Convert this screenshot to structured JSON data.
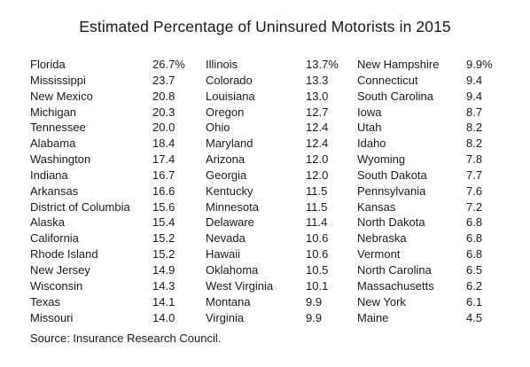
{
  "document": {
    "title": "Estimated Percentage  of Uninsured Motorists in 2015",
    "source": "Source: Insurance Research Council.",
    "columns": [
      {
        "rows": [
          {
            "state": "Florida",
            "pct": "26.7%"
          },
          {
            "state": "Mississippi",
            "pct": "23.7"
          },
          {
            "state": "New Mexico",
            "pct": "20.8"
          },
          {
            "state": "Michigan",
            "pct": "20.3"
          },
          {
            "state": "Tennessee",
            "pct": "20.0"
          },
          {
            "state": "Alabama",
            "pct": "18.4"
          },
          {
            "state": "Washington",
            "pct": "17.4"
          },
          {
            "state": "Indiana",
            "pct": "16.7"
          },
          {
            "state": "Arkansas",
            "pct": "16.6"
          },
          {
            "state": "District of Columbia",
            "pct": "15.6"
          },
          {
            "state": "Alaska",
            "pct": "15.4"
          },
          {
            "state": "California",
            "pct": "15.2"
          },
          {
            "state": "Rhode Island",
            "pct": "15.2"
          },
          {
            "state": "New Jersey",
            "pct": "14.9"
          },
          {
            "state": "Wisconsin",
            "pct": "14.3"
          },
          {
            "state": "Texas",
            "pct": "14.1"
          },
          {
            "state": "Missouri",
            "pct": "14.0"
          }
        ]
      },
      {
        "rows": [
          {
            "state": "Illinois",
            "pct": "13.7%"
          },
          {
            "state": "Colorado",
            "pct": "13.3"
          },
          {
            "state": "Louisiana",
            "pct": "13.0"
          },
          {
            "state": "Oregon",
            "pct": "12.7"
          },
          {
            "state": "Ohio",
            "pct": "12.4"
          },
          {
            "state": "Maryland",
            "pct": "12.4"
          },
          {
            "state": "Arizona",
            "pct": "12.0"
          },
          {
            "state": "Georgia",
            "pct": "12.0"
          },
          {
            "state": "Kentucky",
            "pct": "11.5"
          },
          {
            "state": "Minnesota",
            "pct": "11.5"
          },
          {
            "state": "Delaware",
            "pct": "11.4"
          },
          {
            "state": "Nevada",
            "pct": "10.6"
          },
          {
            "state": "Hawaii",
            "pct": "10.6"
          },
          {
            "state": "Oklahoma",
            "pct": "10.5"
          },
          {
            "state": "West Virginia",
            "pct": "10.1"
          },
          {
            "state": "Montana",
            "pct": "9.9"
          },
          {
            "state": "Virginia",
            "pct": "9.9"
          }
        ]
      },
      {
        "rows": [
          {
            "state": "New Hampshire",
            "pct": "9.9%"
          },
          {
            "state": "Connecticut",
            "pct": "9.4"
          },
          {
            "state": "South Carolina",
            "pct": "9.4"
          },
          {
            "state": "Iowa",
            "pct": "8.7"
          },
          {
            "state": "Utah",
            "pct": "8.2"
          },
          {
            "state": "Idaho",
            "pct": "8.2"
          },
          {
            "state": "Wyoming",
            "pct": "7.8"
          },
          {
            "state": "South Dakota",
            "pct": "7.7"
          },
          {
            "state": "Pennsylvania",
            "pct": "7.6"
          },
          {
            "state": "Kansas",
            "pct": "7.2"
          },
          {
            "state": "North Dakota",
            "pct": "6.8"
          },
          {
            "state": "Nebraska",
            "pct": "6.8"
          },
          {
            "state": "Vermont",
            "pct": "6.8"
          },
          {
            "state": "North Carolina",
            "pct": "6.5"
          },
          {
            "state": "Massachusetts",
            "pct": "6.2"
          },
          {
            "state": "New York",
            "pct": "6.1"
          },
          {
            "state": "Maine",
            "pct": "4.5"
          }
        ]
      }
    ]
  }
}
